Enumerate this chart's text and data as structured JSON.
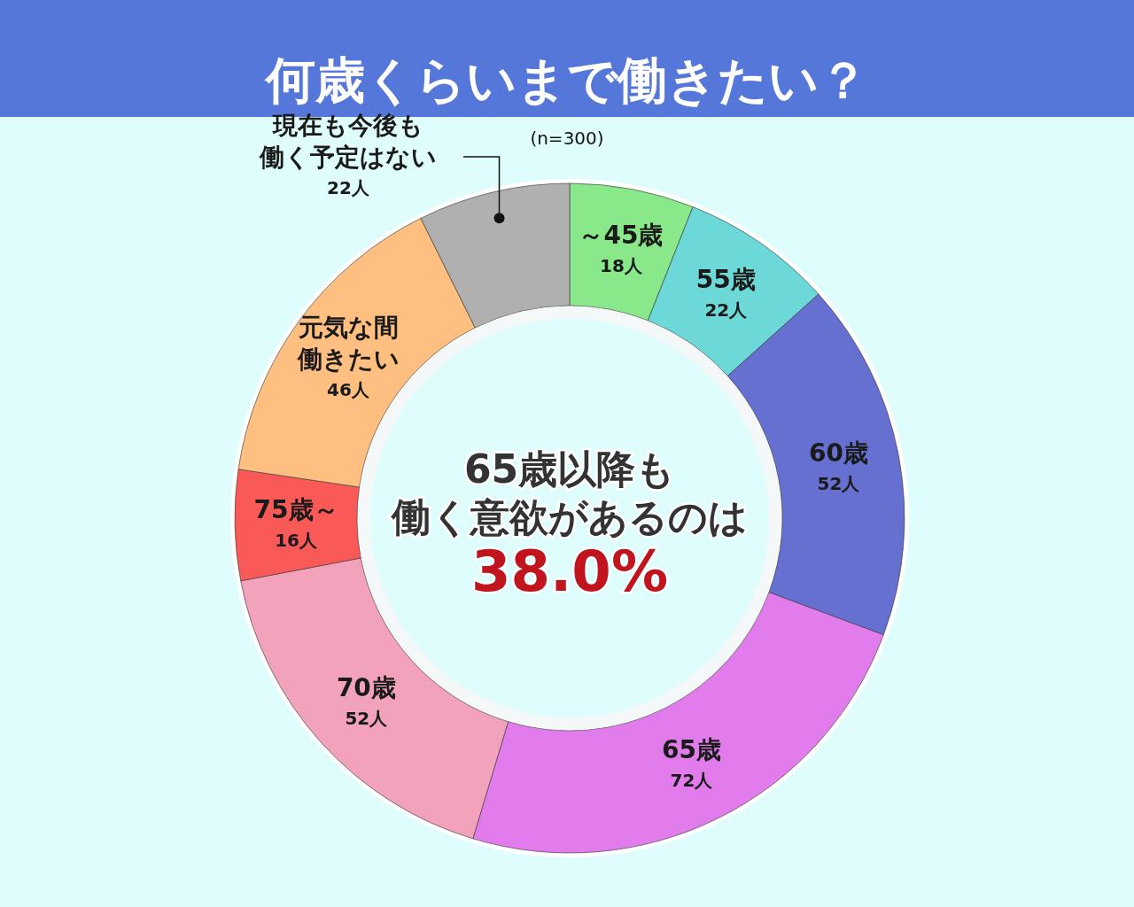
{
  "chart_data": {
    "type": "donut",
    "title": "何歳くらいまで働きたい？",
    "categories": [
      "～45歳",
      "55歳",
      "60歳",
      "65歳",
      "70歳",
      "75歳～",
      "元気な間働きたい",
      "現在も今後も働く予定はない"
    ],
    "values": [
      18,
      22,
      52,
      72,
      52,
      16,
      46,
      22
    ],
    "value_labels": [
      "18人",
      "22人",
      "52人",
      "72人",
      "52人",
      "16人",
      "46人",
      "22人"
    ],
    "colors": [
      "#88e88a",
      "#6cd8d8",
      "#6670d0",
      "#e27ced",
      "#f3a2bb",
      "#f95a58",
      "#ffbf80",
      "#b0b0b0"
    ],
    "annotations": [
      "(n=300)",
      "65歳以降も",
      "働く意欲があるのは",
      "38.0%"
    ],
    "legend": false
  }
}
